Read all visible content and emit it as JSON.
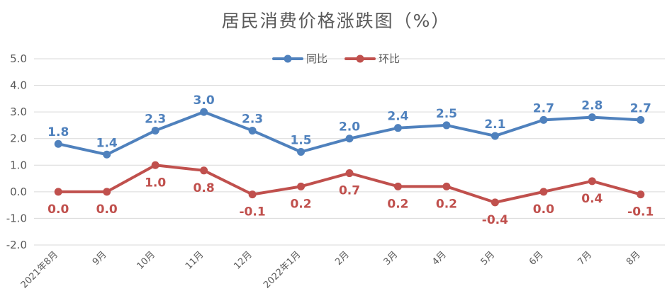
{
  "chart_data": {
    "type": "line",
    "title": "居民消费价格涨跌图（%）",
    "categories": [
      "2021年8月",
      "9月",
      "10月",
      "11月",
      "12月",
      "2022年1月",
      "2月",
      "3月",
      "4月",
      "5月",
      "6月",
      "7月",
      "8月"
    ],
    "series": [
      {
        "name": "同比",
        "color": "#4f81bd",
        "values": [
          1.8,
          1.4,
          2.3,
          3.0,
          2.3,
          1.5,
          2.0,
          2.4,
          2.5,
          2.1,
          2.7,
          2.8,
          2.7
        ],
        "labels": [
          "1.8",
          "1.4",
          "2.3",
          "3.0",
          "2.3",
          "1.5",
          "2.0",
          "2.4",
          "2.5",
          "2.1",
          "2.7",
          "2.8",
          "2.7"
        ]
      },
      {
        "name": "环比",
        "color": "#c0504d",
        "values": [
          0.0,
          0.0,
          1.0,
          0.8,
          -0.1,
          0.2,
          0.7,
          0.2,
          0.2,
          -0.4,
          0.0,
          0.4,
          -0.1
        ],
        "labels": [
          "0.0",
          "0.0",
          "1.0",
          "0.8",
          "-0.1",
          "0.2",
          "0.7",
          "0.2",
          "0.2",
          "-0.4",
          "0.0",
          "0.4",
          "-0.1"
        ]
      }
    ],
    "ylim": [
      -2.0,
      5.0
    ],
    "yticks": [
      "-2.0",
      "-1.0",
      "0.0",
      "1.0",
      "2.0",
      "3.0",
      "4.0",
      "5.0"
    ],
    "xlabel": "",
    "ylabel": "",
    "grid": true,
    "legend": "top"
  }
}
